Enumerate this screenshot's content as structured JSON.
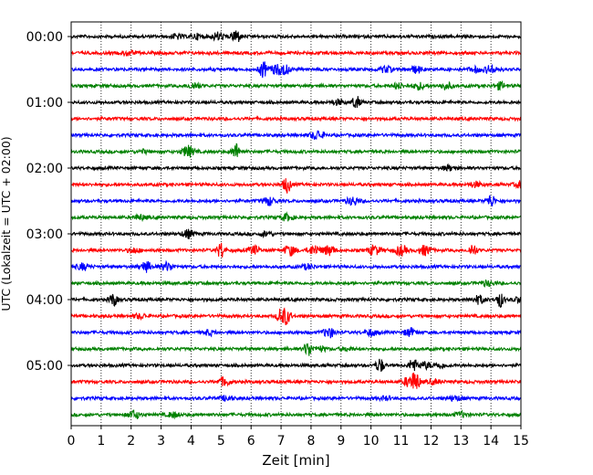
{
  "chart_data": {
    "type": "line",
    "title": "",
    "xlabel": "Zeit  [min]",
    "ylabel": "UTC (Lokalzeit = UTC + 02:00)",
    "xlim": [
      0,
      15
    ],
    "xticks": [
      "0",
      "1",
      "2",
      "3",
      "4",
      "5",
      "6",
      "7",
      "8",
      "9",
      "10",
      "11",
      "12",
      "13",
      "14",
      "15"
    ],
    "ytick_labels": [
      "00:00",
      "01:00",
      "02:00",
      "03:00",
      "04:00",
      "05:00"
    ],
    "grid_x": true,
    "grid_style": "dotted",
    "row_interval_minutes": 15,
    "color_cycle": [
      "#000000",
      "#ff0000",
      "#0000ff",
      "#008000"
    ],
    "rows": [
      {
        "time": "00:00",
        "color": "#000000",
        "events": [
          [
            5.5,
            1.0
          ],
          [
            4.9,
            0.5
          ],
          [
            3.5,
            0.3
          ],
          [
            4.2,
            0.3
          ]
        ]
      },
      {
        "time": "00:15",
        "color": "#ff0000",
        "events": [
          [
            1.9,
            0.3
          ]
        ]
      },
      {
        "time": "00:30",
        "color": "#0000ff",
        "events": [
          [
            6.4,
            1.0
          ],
          [
            6.8,
            0.5
          ],
          [
            7.1,
            0.6
          ],
          [
            10.5,
            0.4
          ],
          [
            11.5,
            0.4
          ],
          [
            14.0,
            0.5
          ],
          [
            13.5,
            0.3
          ]
        ]
      },
      {
        "time": "00:45",
        "color": "#008000",
        "events": [
          [
            4.1,
            0.4
          ],
          [
            11.6,
            0.4
          ],
          [
            12.5,
            0.4
          ],
          [
            14.3,
            0.4
          ],
          [
            10.9,
            0.3
          ]
        ]
      },
      {
        "time": "01:00",
        "color": "#000000",
        "events": [
          [
            9.5,
            0.8
          ],
          [
            8.9,
            0.3
          ]
        ]
      },
      {
        "time": "01:15",
        "color": "#ff0000",
        "events": []
      },
      {
        "time": "01:30",
        "color": "#0000ff",
        "events": [
          [
            8.2,
            0.6
          ]
        ]
      },
      {
        "time": "01:45",
        "color": "#008000",
        "events": [
          [
            3.9,
            0.7
          ],
          [
            5.5,
            1.0
          ],
          [
            2.4,
            0.2
          ]
        ]
      },
      {
        "time": "02:00",
        "color": "#000000",
        "events": [
          [
            12.6,
            0.3
          ]
        ]
      },
      {
        "time": "02:15",
        "color": "#ff0000",
        "events": [
          [
            7.2,
            1.0
          ],
          [
            13.5,
            0.3
          ],
          [
            15.0,
            0.4
          ]
        ]
      },
      {
        "time": "02:30",
        "color": "#0000ff",
        "events": [
          [
            6.6,
            0.5
          ],
          [
            9.4,
            0.5
          ],
          [
            14.0,
            0.8
          ]
        ]
      },
      {
        "time": "02:45",
        "color": "#008000",
        "events": [
          [
            7.2,
            0.4
          ],
          [
            2.3,
            0.3
          ]
        ]
      },
      {
        "time": "03:00",
        "color": "#000000",
        "events": [
          [
            3.9,
            0.5
          ],
          [
            6.5,
            0.3
          ]
        ]
      },
      {
        "time": "03:15",
        "color": "#ff0000",
        "events": [
          [
            5.0,
            1.0
          ],
          [
            7.3,
            0.6
          ],
          [
            8.1,
            0.6
          ],
          [
            8.6,
            0.6
          ],
          [
            10.1,
            0.6
          ],
          [
            11.0,
            0.6
          ],
          [
            11.8,
            0.6
          ],
          [
            13.4,
            0.8
          ],
          [
            6.1,
            0.5
          ],
          [
            2.1,
            0.3
          ]
        ]
      },
      {
        "time": "03:30",
        "color": "#0000ff",
        "events": [
          [
            0.4,
            0.4
          ],
          [
            2.5,
            0.6
          ],
          [
            3.2,
            0.5
          ],
          [
            7.9,
            0.3
          ]
        ]
      },
      {
        "time": "03:45",
        "color": "#008000",
        "events": [
          [
            13.9,
            0.3
          ]
        ]
      },
      {
        "time": "04:00",
        "color": "#000000",
        "events": [
          [
            1.4,
            0.8
          ],
          [
            13.6,
            0.5
          ],
          [
            14.3,
            0.9
          ],
          [
            15.0,
            0.4
          ]
        ]
      },
      {
        "time": "04:15",
        "color": "#ff0000",
        "events": [
          [
            7.0,
            1.0
          ],
          [
            7.2,
            0.9
          ],
          [
            2.3,
            0.3
          ]
        ]
      },
      {
        "time": "04:30",
        "color": "#0000ff",
        "events": [
          [
            8.6,
            0.6
          ],
          [
            10.0,
            0.4
          ],
          [
            11.3,
            0.5
          ],
          [
            4.6,
            0.3
          ]
        ]
      },
      {
        "time": "04:45",
        "color": "#008000",
        "events": [
          [
            7.9,
            0.9
          ],
          [
            8.3,
            0.3
          ],
          [
            9.2,
            0.2
          ]
        ]
      },
      {
        "time": "05:00",
        "color": "#000000",
        "events": [
          [
            10.3,
            0.9
          ],
          [
            11.4,
            0.9
          ],
          [
            11.8,
            0.4
          ],
          [
            12.3,
            0.3
          ]
        ]
      },
      {
        "time": "05:15",
        "color": "#ff0000",
        "events": [
          [
            5.1,
            0.5
          ],
          [
            11.5,
            1.0
          ],
          [
            11.3,
            0.7
          ],
          [
            12.1,
            0.3
          ]
        ]
      },
      {
        "time": "05:30",
        "color": "#0000ff",
        "events": [
          [
            5.2,
            0.3
          ],
          [
            12.8,
            0.3
          ],
          [
            10.5,
            0.2
          ]
        ]
      },
      {
        "time": "05:45",
        "color": "#008000",
        "events": [
          [
            2.1,
            0.5
          ],
          [
            3.4,
            0.3
          ],
          [
            13.0,
            0.3
          ]
        ]
      }
    ]
  }
}
